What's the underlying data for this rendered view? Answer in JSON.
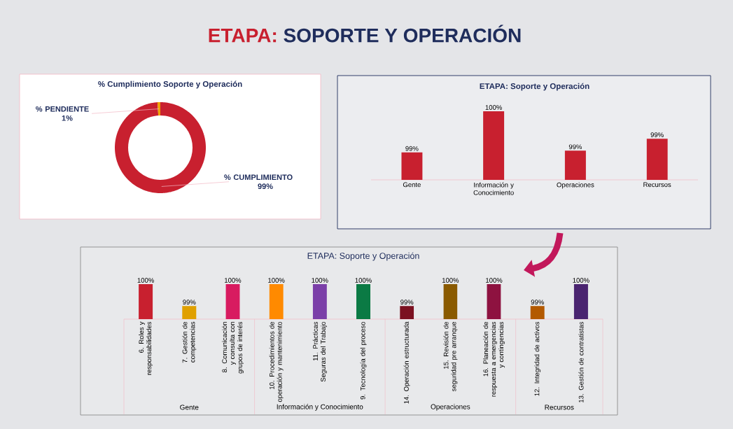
{
  "chart_data": [
    {
      "type": "donut",
      "title": "% Cumplimiento Soporte y Operación",
      "categories": [
        "% CUMPLIMIENTO",
        "% PENDIENTE"
      ],
      "values": [
        99,
        1
      ],
      "colors": [
        "#c8202f",
        "#f0a000"
      ],
      "value_labels": [
        "99%",
        "1%"
      ],
      "annotations": [
        "ETAPA:",
        "SOPORTE Y OPERACIÓN"
      ]
    },
    {
      "type": "bar",
      "title": "ETAPA: Soporte y Operación",
      "categories": [
        "Gente",
        "Información y Conocimiento",
        "Operaciones",
        "Recursos"
      ],
      "values": [
        98.8,
        100,
        98.85,
        99.2
      ],
      "color": "#c8202f",
      "value_labels": [
        "99%",
        "100%",
        "99%",
        "99%"
      ],
      "ylim": [
        98,
        100
      ],
      "tick_labels": "x"
    },
    {
      "type": "bar",
      "title": "ETAPA: Soporte y Operación",
      "categories": [
        "6. Roles y responsabilidades",
        "7. Gestión de competencias",
        "8. Comunicación y consulta con grupos de interés",
        "10. Procedimientos de operación y mantenimiento",
        "11. Prácticas Seguras del Trabajo",
        "9. Tecnología del proceso",
        "14. Operación estructurada",
        "15. Revisión de seguridad pre arranque",
        "16. Planeación de respuesta a emergencias y contingencias",
        "12. Integridad de activos",
        "13. Gestión de contratistas"
      ],
      "values": [
        100,
        98.75,
        100,
        100,
        100,
        100,
        98.75,
        100,
        100,
        98.75,
        100
      ],
      "colors": [
        "#c8202f",
        "#e0a000",
        "#d81b60",
        "#ff8a00",
        "#7b3fa8",
        "#0b7a44",
        "#7b1020",
        "#8a5a00",
        "#8e1240",
        "#b35900",
        "#4a2470"
      ],
      "value_labels": [
        "100%",
        "99%",
        "100%",
        "100%",
        "100%",
        "100%",
        "99%",
        "100%",
        "100%",
        "99%",
        "100%"
      ],
      "ylim": [
        98,
        100
      ],
      "tick_labels": "x",
      "annotations": [
        "Gente",
        "Información y Conocimiento",
        "Operaciones",
        "Recursos"
      ]
    }
  ]
}
